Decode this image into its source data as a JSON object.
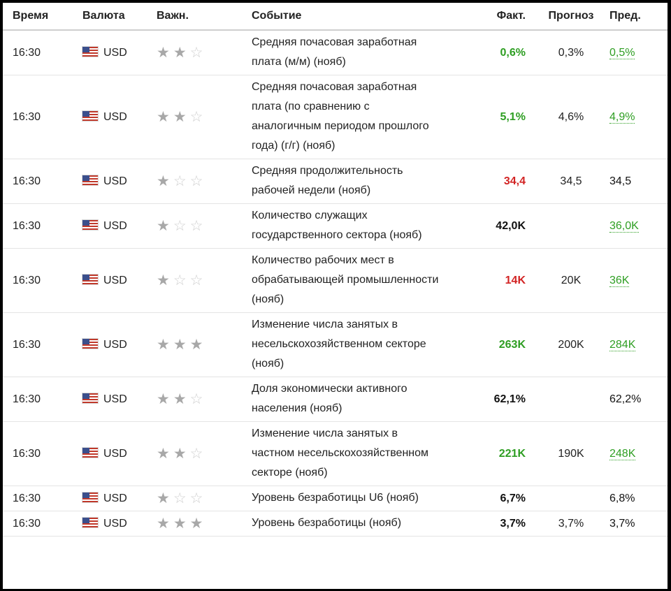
{
  "headers": {
    "time": "Время",
    "currency": "Валюта",
    "importance": "Важн.",
    "event": "Событие",
    "actual": "Факт.",
    "forecast": "Прогноз",
    "previous": "Пред."
  },
  "colors": {
    "better": "#2e9e22",
    "worse": "#d22424",
    "neutral": "#111111"
  },
  "rows": [
    {
      "time": "16:30",
      "currency": "USD",
      "importance": 2,
      "event": "Средняя почасовая заработная плата (м/м) (нояб)",
      "actual": "0,6%",
      "actual_state": "green",
      "forecast": "0,3%",
      "previous": "0,5%",
      "previous_state": "green-link"
    },
    {
      "time": "16:30",
      "currency": "USD",
      "importance": 2,
      "event": "Средняя почасовая заработная плата (по сравнению с аналогичным периодом прошлого года) (г/г) (нояб)",
      "actual": "5,1%",
      "actual_state": "green",
      "forecast": "4,6%",
      "previous": "4,9%",
      "previous_state": "green-link"
    },
    {
      "time": "16:30",
      "currency": "USD",
      "importance": 1,
      "event": "Средняя продолжительность рабочей недели (нояб)",
      "actual": "34,4",
      "actual_state": "red",
      "forecast": "34,5",
      "previous": "34,5",
      "previous_state": "plain"
    },
    {
      "time": "16:30",
      "currency": "USD",
      "importance": 1,
      "event": "Количество служащих государственного сектора (нояб)",
      "actual": "42,0K",
      "actual_state": "black",
      "forecast": "",
      "previous": "36,0K",
      "previous_state": "green-link"
    },
    {
      "time": "16:30",
      "currency": "USD",
      "importance": 1,
      "event": "Количество рабочих мест в обрабатывающей промышленности (нояб)",
      "actual": "14K",
      "actual_state": "red",
      "forecast": "20K",
      "previous": "36K",
      "previous_state": "green-link"
    },
    {
      "time": "16:30",
      "currency": "USD",
      "importance": 3,
      "event": "Изменение числа занятых в несельскохозяйственном секторе (нояб)",
      "actual": "263K",
      "actual_state": "green",
      "forecast": "200K",
      "previous": "284K",
      "previous_state": "green-link"
    },
    {
      "time": "16:30",
      "currency": "USD",
      "importance": 2,
      "event": "Доля экономически активного населения (нояб)",
      "actual": "62,1%",
      "actual_state": "black",
      "forecast": "",
      "previous": "62,2%",
      "previous_state": "plain"
    },
    {
      "time": "16:30",
      "currency": "USD",
      "importance": 2,
      "event": "Изменение числа занятых в частном несельскохозяйственном секторе (нояб)",
      "actual": "221K",
      "actual_state": "green",
      "forecast": "190K",
      "previous": "248K",
      "previous_state": "green-link"
    },
    {
      "time": "16:30",
      "currency": "USD",
      "importance": 1,
      "event": "Уровень безработицы U6 (нояб)",
      "actual": "6,7%",
      "actual_state": "black",
      "forecast": "",
      "previous": "6,8%",
      "previous_state": "plain"
    },
    {
      "time": "16:30",
      "currency": "USD",
      "importance": 3,
      "event": "Уровень безработицы (нояб)",
      "actual": "3,7%",
      "actual_state": "black",
      "forecast": "3,7%",
      "previous": "3,7%",
      "previous_state": "plain"
    }
  ]
}
